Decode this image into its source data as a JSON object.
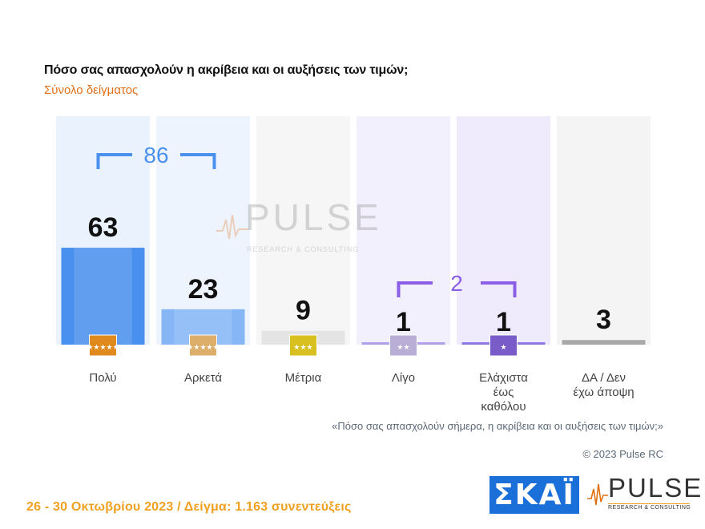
{
  "header": {
    "title": "Πόσο σας απασχολούν η ακρίβεια και οι αυξήσεις των τιμών;",
    "subtitle": "Σύνολο δείγματος"
  },
  "chart_data": {
    "type": "bar",
    "title": "Πόσο σας απασχολούν η ακρίβεια και οι αυξήσεις των τιμών;",
    "subtitle": "Σύνολο δείγματος",
    "categories": [
      "Πολύ",
      "Αρκετά",
      "Μέτρια",
      "Λίγο",
      "Ελάχιστα έως καθόλου",
      "ΔΑ / Δεν έχω άποψη"
    ],
    "category_lines": [
      [
        "Πολύ"
      ],
      [
        "Αρκετά"
      ],
      [
        "Μέτρια"
      ],
      [
        "Λίγο"
      ],
      [
        "Ελάχιστα",
        "έως",
        "καθόλου"
      ],
      [
        "ΔΑ / Δεν",
        "έχω άποψη"
      ]
    ],
    "values": [
      63,
      23,
      9,
      1,
      1,
      3
    ],
    "value_labels": [
      "63",
      "23",
      "9",
      "1",
      "1",
      "3"
    ],
    "ylim": [
      0,
      100
    ],
    "bar_colors": [
      "#4a90ee",
      "#86b6f6",
      "#e4e4e4",
      "#b0a0ec",
      "#8e78e4",
      "#a8a8a8"
    ],
    "column_bg_colors": [
      "#e9f2fd",
      "#eef4fd",
      "#f6f6f6",
      "#f3f0fd",
      "#efebfc",
      "#f4f4f4"
    ],
    "star_badges": [
      {
        "color": "#e08a1e",
        "stars": 5
      },
      {
        "color": "#dcae6a",
        "stars": 5
      },
      {
        "color": "#d8c020",
        "stars": 3
      },
      {
        "color": "#b8aed6",
        "stars": 2
      },
      {
        "color": "#7a5cc8",
        "stars": 1
      },
      null
    ],
    "brackets": [
      {
        "label": "86",
        "from": 0,
        "to": 1,
        "color": "#4a90ee"
      },
      {
        "label": "2",
        "from": 3,
        "to": 4,
        "color": "#8a5ee6"
      }
    ]
  },
  "notes": {
    "question": "«Πόσο σας απασχολούν σήμερα, η ακρίβεια και οι αυξήσεις των τιμών;»",
    "copyright": "© 2023 Pulse RC"
  },
  "footer": {
    "text": "26 - 30  Οκτωβρίου  2023  /  Δείγμα:  1.163 συνεντεύξεις"
  },
  "logos": {
    "skai": "ΣΚΑΪ",
    "pulse_word": "PULSE",
    "pulse_tagline": "RESEARCH & CONSULTING"
  }
}
